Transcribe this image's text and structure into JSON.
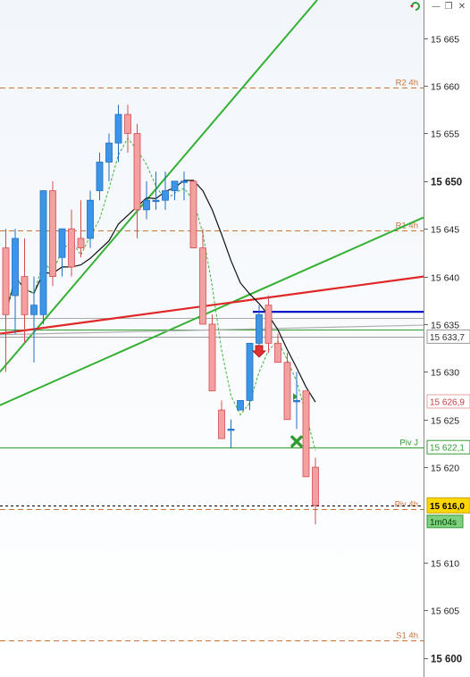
{
  "window": {
    "icons": [
      "refresh-icon",
      "minimize-icon",
      "restore-icon",
      "close-icon"
    ],
    "min_glyph": "—",
    "restore_glyph": "❐",
    "close_glyph": "✕"
  },
  "chart_data": {
    "type": "candlestick",
    "y_axis": {
      "min": 15598,
      "max": 15669,
      "ticks": [
        {
          "v": 15665,
          "label": "15 665",
          "bold": false
        },
        {
          "v": 15660,
          "label": "15 660",
          "bold": false
        },
        {
          "v": 15655,
          "label": "15 655",
          "bold": false
        },
        {
          "v": 15650,
          "label": "15 650",
          "bold": true
        },
        {
          "v": 15645,
          "label": "15 645",
          "bold": false
        },
        {
          "v": 15640,
          "label": "15 640",
          "bold": false
        },
        {
          "v": 15635,
          "label": "15 635",
          "bold": false
        },
        {
          "v": 15630,
          "label": "15 630",
          "bold": false
        },
        {
          "v": 15625,
          "label": "15 625",
          "bold": false
        },
        {
          "v": 15620,
          "label": "15 620",
          "bold": false
        },
        {
          "v": 15610,
          "label": "15 610",
          "bold": false
        },
        {
          "v": 15605,
          "label": "15 605",
          "bold": false
        },
        {
          "v": 15600,
          "label": "15 600",
          "bold": true
        }
      ]
    },
    "levels": [
      {
        "label": "R2 4h",
        "value": 15659.8,
        "color": "#c8743a",
        "style": "dashed"
      },
      {
        "label": "R1 4h",
        "value": 15644.8,
        "color": "#c8743a",
        "style": "dashed"
      },
      {
        "label": "Piv J",
        "value": 15622.1,
        "color": "#2e9e2e",
        "style": "solid"
      },
      {
        "label": "Piv 4h",
        "value": 15615.6,
        "color": "#c8743a",
        "style": "dashed"
      },
      {
        "label": "S1 4h",
        "value": 15601.8,
        "color": "#c8743a",
        "style": "dashed"
      }
    ],
    "price_boxes": [
      {
        "label": "15 633,7",
        "value": 15633.7,
        "bg": "#ffffff",
        "border": "#999999",
        "color": "#333333"
      },
      {
        "label": "15 626,9",
        "value": 15626.9,
        "bg": "#ffffff",
        "border": "#e8a0a0",
        "color": "#c84040"
      },
      {
        "label": "15 622,1",
        "value": 15622.1,
        "bg": "#ffffff",
        "border": "#2e9e2e",
        "color": "#2e9e2e"
      },
      {
        "label": "15 616,0",
        "value": 15616.0,
        "bg": "#ffd700",
        "border": "#c9a400",
        "color": "#000000",
        "bold": true
      }
    ],
    "timer": {
      "label": "1m04s",
      "bg": "#7fd07f",
      "color": "#004400"
    },
    "current_price": 15616.0,
    "candles": [
      {
        "o": 15643,
        "h": 15645,
        "l": 15630,
        "c": 15636
      },
      {
        "o": 15638,
        "h": 15645,
        "l": 15634,
        "c": 15644
      },
      {
        "o": 15640,
        "h": 15644,
        "l": 15633,
        "c": 15636
      },
      {
        "o": 15636,
        "h": 15640,
        "l": 15631,
        "c": 15637
      },
      {
        "o": 15636,
        "h": 15649,
        "l": 15635,
        "c": 15649
      },
      {
        "o": 15649,
        "h": 15650,
        "l": 15639,
        "c": 15640
      },
      {
        "o": 15642,
        "h": 15645,
        "l": 15640,
        "c": 15645
      },
      {
        "o": 15645,
        "h": 15647,
        "l": 15640,
        "c": 15641
      },
      {
        "o": 15644,
        "h": 15648,
        "l": 15642,
        "c": 15643
      },
      {
        "o": 15644,
        "h": 15649,
        "l": 15643,
        "c": 15648
      },
      {
        "o": 15649,
        "h": 15653,
        "l": 15648,
        "c": 15652
      },
      {
        "o": 15652,
        "h": 15655,
        "l": 15650,
        "c": 15654
      },
      {
        "o": 15654,
        "h": 15658,
        "l": 15652,
        "c": 15657
      },
      {
        "o": 15657,
        "h": 15658,
        "l": 15653,
        "c": 15655
      },
      {
        "o": 15655,
        "h": 15656,
        "l": 15644,
        "c": 15647
      },
      {
        "o": 15647,
        "h": 15650,
        "l": 15646,
        "c": 15648
      },
      {
        "o": 15648,
        "h": 15651,
        "l": 15647,
        "c": 15648
      },
      {
        "o": 15648,
        "h": 15651,
        "l": 15647,
        "c": 15649
      },
      {
        "o": 15649,
        "h": 15650,
        "l": 15648,
        "c": 15650
      },
      {
        "o": 15650,
        "h": 15651,
        "l": 15648,
        "c": 15650
      },
      {
        "o": 15650,
        "h": 15650,
        "l": 15643,
        "c": 15643
      },
      {
        "o": 15643,
        "h": 15645,
        "l": 15635,
        "c": 15635
      },
      {
        "o": 15635,
        "h": 15636,
        "l": 15628,
        "c": 15628
      },
      {
        "o": 15626,
        "h": 15627,
        "l": 15623,
        "c": 15623
      },
      {
        "o": 15624,
        "h": 15625,
        "l": 15622,
        "c": 15624
      },
      {
        "o": 15626,
        "h": 15627,
        "l": 15626,
        "c": 15627
      },
      {
        "o": 15627,
        "h": 15633,
        "l": 15626,
        "c": 15633
      },
      {
        "o": 15633,
        "h": 15637,
        "l": 15632,
        "c": 15636
      },
      {
        "o": 15637,
        "h": 15638,
        "l": 15632,
        "c": 15633
      },
      {
        "o": 15633,
        "h": 15634,
        "l": 15631,
        "c": 15631
      },
      {
        "o": 15631,
        "h": 15632,
        "l": 15625,
        "c": 15625
      },
      {
        "o": 15627,
        "h": 15630,
        "l": 15624,
        "c": 15627
      },
      {
        "o": 15628,
        "h": 15628,
        "l": 15619,
        "c": 15619
      },
      {
        "o": 15620,
        "h": 15621,
        "l": 15614,
        "c": 15616
      }
    ]
  }
}
